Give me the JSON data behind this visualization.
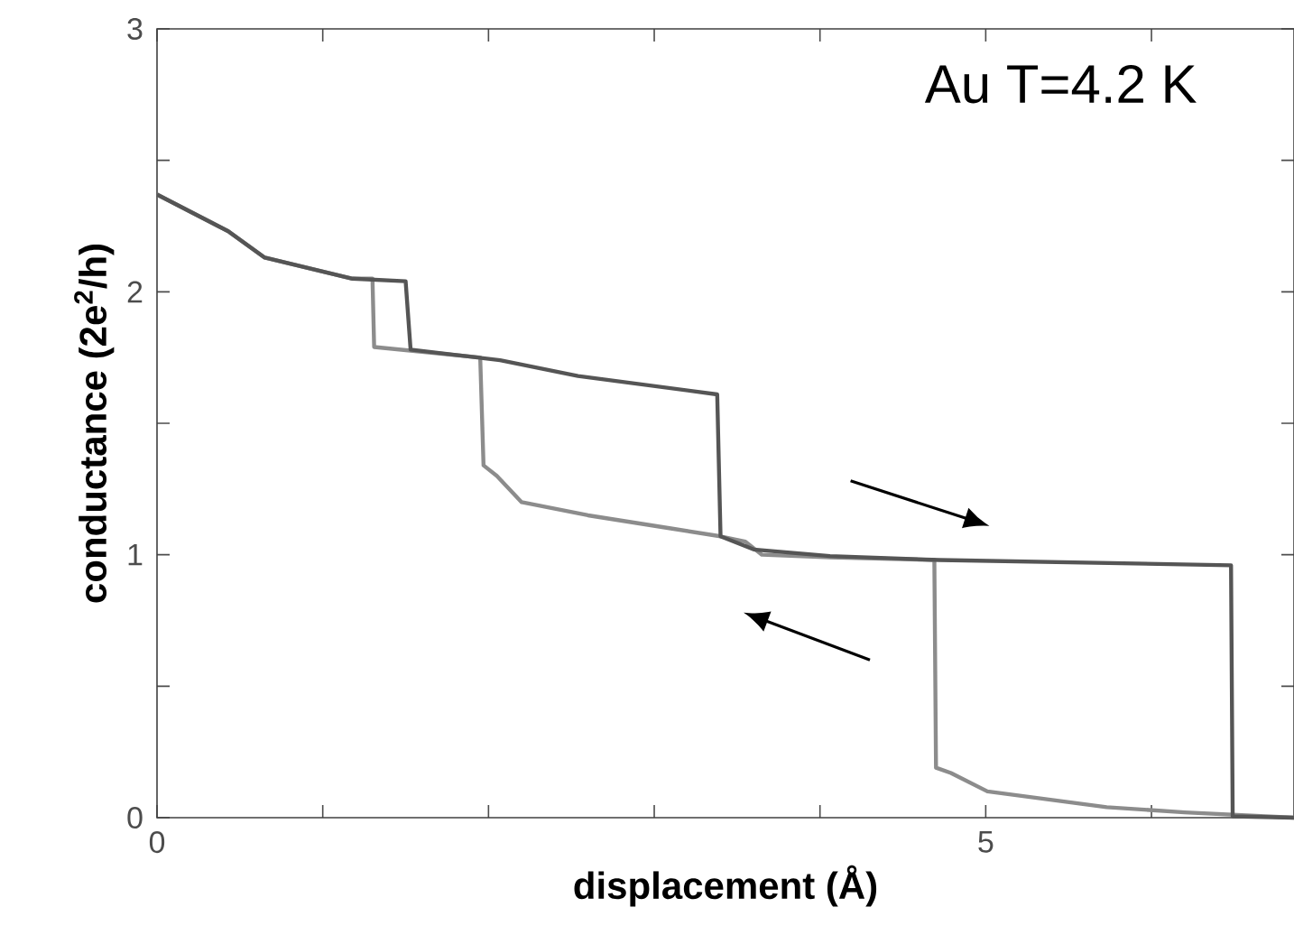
{
  "chart_data": {
    "type": "line",
    "xlabel": "displacement (Å)",
    "ylabel": "conductance (2e$^{2}$/h)",
    "annotations": [
      "Au  T=4.2 K"
    ],
    "xlim": [
      0,
      6.86
    ],
    "ylim": [
      0,
      3
    ],
    "xticks": [
      0,
      {
        "value": 1,
        "label": null
      },
      {
        "value": 2,
        "label": null
      },
      {
        "value": 3,
        "label": null
      },
      {
        "value": 4,
        "label": null
      },
      5,
      {
        "value": 6,
        "label": null
      }
    ],
    "yticks": [
      0,
      {
        "value": 0.5,
        "label": null
      },
      1,
      {
        "value": 1.5,
        "label": null
      },
      2,
      {
        "value": 2.5,
        "label": null
      },
      3
    ],
    "grid": false,
    "line_style": "solid",
    "marker": "none",
    "series": [
      {
        "color": "#8c8c8c",
        "x": [
          0,
          0.43,
          0.65,
          1.18,
          1.3,
          1.31,
          1.95,
          1.97,
          2.05,
          2.2,
          2.6,
          3.1,
          3.4,
          3.55,
          3.65,
          4.06,
          4.69,
          4.7,
          4.79,
          5.01,
          5.73,
          6.2,
          6.86
        ],
        "values": [
          2.37,
          2.23,
          2.13,
          2.05,
          2.05,
          1.79,
          1.75,
          1.34,
          1.3,
          1.2,
          1.15,
          1.1,
          1.07,
          1.05,
          1.0,
          0.99,
          0.98,
          0.19,
          0.17,
          0.1,
          0.04,
          0.02,
          0
        ]
      },
      {
        "color": "#555555",
        "x": [
          0,
          0.43,
          0.65,
          1.18,
          1.5,
          1.53,
          2.07,
          2.54,
          3.38,
          3.4,
          3.6,
          4.06,
          4.72,
          6.48,
          6.49,
          6.86
        ],
        "values": [
          2.37,
          2.23,
          2.13,
          2.05,
          2.04,
          1.78,
          1.74,
          1.68,
          1.61,
          1.07,
          1.02,
          0.995,
          0.98,
          0.96,
          0.005,
          0
        ]
      }
    ]
  }
}
